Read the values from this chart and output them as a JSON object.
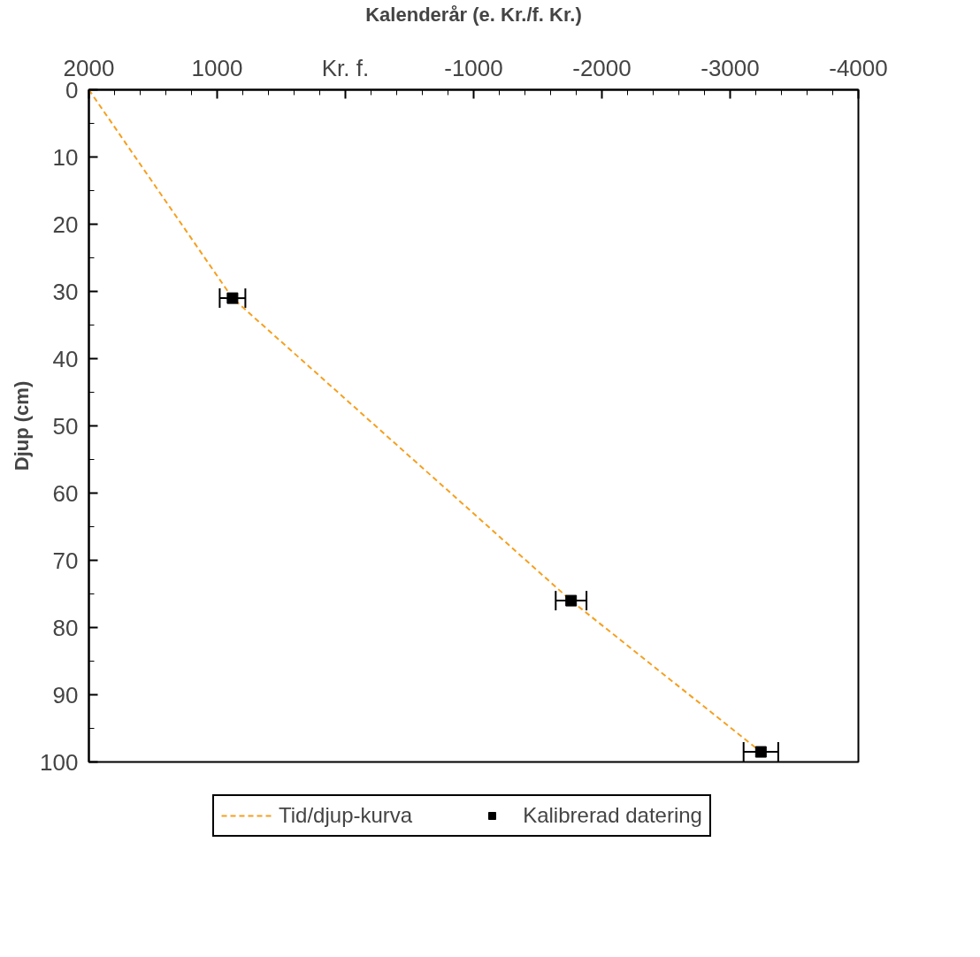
{
  "chart_data": {
    "type": "line",
    "xlabel": "Kalenderår (e. Kr./f. Kr.)",
    "ylabel": "Djup (cm)",
    "xlim": [
      2000,
      -4000
    ],
    "xticks": [
      2000,
      {
        "value": 1800,
        "label": null
      },
      {
        "value": 1600,
        "label": null
      },
      {
        "value": 1400,
        "label": null
      },
      {
        "value": 1200,
        "label": null
      },
      1000,
      {
        "value": 800,
        "label": null
      },
      {
        "value": 600,
        "label": null
      },
      {
        "value": 400,
        "label": null
      },
      {
        "value": 200,
        "label": null
      },
      {
        "value": 0,
        "label": "Kr. f."
      },
      {
        "value": -200,
        "label": null
      },
      {
        "value": -400,
        "label": null
      },
      {
        "value": -600,
        "label": null
      },
      {
        "value": -800,
        "label": null
      },
      -1000,
      {
        "value": -1200,
        "label": null
      },
      {
        "value": -1400,
        "label": null
      },
      {
        "value": -1600,
        "label": null
      },
      {
        "value": -1800,
        "label": null
      },
      -2000,
      {
        "value": -2200,
        "label": null
      },
      {
        "value": -2400,
        "label": null
      },
      {
        "value": -2600,
        "label": null
      },
      {
        "value": -2800,
        "label": null
      },
      -3000,
      {
        "value": -3200,
        "label": null
      },
      {
        "value": -3400,
        "label": null
      },
      {
        "value": -3600,
        "label": null
      },
      {
        "value": -3800,
        "label": null
      },
      -4000
    ],
    "ylim": [
      100,
      0
    ],
    "yticks": [
      0,
      {
        "value": 5,
        "label": null
      },
      10,
      {
        "value": 15,
        "label": null
      },
      20,
      {
        "value": 25,
        "label": null
      },
      30,
      {
        "value": 35,
        "label": null
      },
      40,
      {
        "value": 45,
        "label": null
      },
      50,
      {
        "value": 55,
        "label": null
      },
      60,
      {
        "value": 65,
        "label": null
      },
      70,
      {
        "value": 75,
        "label": null
      },
      80,
      {
        "value": 85,
        "label": null
      },
      90,
      {
        "value": 95,
        "label": null
      },
      100
    ],
    "grid": false,
    "legend": "bottom",
    "series": [
      {
        "name": "Tid/djup-kurva",
        "color": "#f5a020",
        "line_style": "dashed",
        "marker": "none",
        "x": [
          2000,
          880,
          -1760,
          -3240
        ],
        "values": [
          0,
          31,
          76,
          98.5
        ]
      },
      {
        "name": "Kalibrerad datering",
        "type": "scatter",
        "color": "#000000",
        "marker": "square",
        "x": [
          880,
          -1760,
          -3240
        ],
        "values": [
          31,
          76,
          98.5
        ],
        "xerrors": [
          100,
          120,
          135
        ]
      }
    ]
  }
}
